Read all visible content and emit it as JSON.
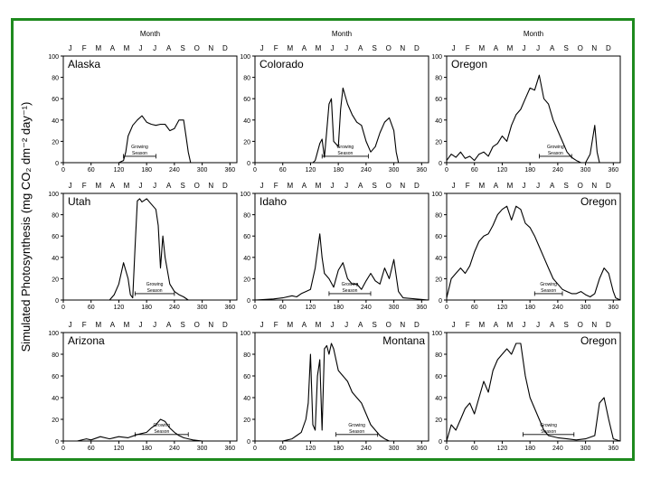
{
  "y_axis_label": "Simulated Photosynthesis (mg CO₂ dm⁻² day⁻¹)",
  "month_axis_title": "Month",
  "growing_season_label": [
    "Growing",
    "Season"
  ],
  "colors": {
    "frame": "#1e8a1e",
    "line": "#000000"
  },
  "chart_data": [
    {
      "type": "line",
      "title": "Alaska",
      "ylim": [
        0,
        100
      ],
      "xlim": [
        0,
        375
      ],
      "xticks": [
        0,
        60,
        120,
        180,
        240,
        300,
        360
      ],
      "yticks": [
        0,
        20,
        40,
        60,
        80,
        100
      ],
      "months": [
        "J",
        "F",
        "M",
        "A",
        "M",
        "J",
        "J",
        "A",
        "S",
        "O",
        "N",
        "D"
      ],
      "show_month_title": true,
      "title_align": "left",
      "growing_season": [
        130,
        200
      ],
      "series": [
        {
          "x": [
            0,
            120,
            130,
            135,
            140,
            150,
            160,
            170,
            180,
            190,
            200,
            210,
            220,
            230,
            240,
            250,
            260,
            265,
            270,
            275,
            375
          ],
          "y": [
            0,
            0,
            2,
            10,
            25,
            35,
            40,
            44,
            38,
            36,
            35,
            36,
            36,
            30,
            32,
            40,
            40,
            25,
            10,
            0,
            0
          ]
        }
      ]
    },
    {
      "type": "line",
      "title": "Colorado",
      "ylim": [
        0,
        100
      ],
      "xlim": [
        0,
        375
      ],
      "xticks": [
        0,
        60,
        120,
        180,
        240,
        300,
        360
      ],
      "yticks": [
        0,
        20,
        40,
        60,
        80,
        100
      ],
      "months": [
        "J",
        "F",
        "M",
        "A",
        "M",
        "J",
        "J",
        "A",
        "S",
        "O",
        "N",
        "D"
      ],
      "show_month_title": true,
      "title_align": "left",
      "growing_season": [
        145,
        245
      ],
      "series": [
        {
          "x": [
            0,
            125,
            130,
            140,
            145,
            150,
            155,
            160,
            165,
            170,
            180,
            185,
            190,
            200,
            210,
            220,
            230,
            240,
            250,
            260,
            270,
            280,
            290,
            300,
            305,
            310,
            375
          ],
          "y": [
            0,
            0,
            2,
            18,
            22,
            5,
            30,
            55,
            60,
            20,
            15,
            50,
            70,
            55,
            45,
            38,
            35,
            20,
            10,
            15,
            28,
            38,
            42,
            30,
            10,
            0,
            0
          ]
        }
      ]
    },
    {
      "type": "line",
      "title": "Oregon",
      "ylim": [
        0,
        100
      ],
      "xlim": [
        0,
        375
      ],
      "xticks": [
        0,
        60,
        120,
        180,
        240,
        300,
        360
      ],
      "yticks": [
        0,
        20,
        40,
        60,
        80,
        100
      ],
      "months": [
        "J",
        "F",
        "M",
        "A",
        "M",
        "J",
        "J",
        "A",
        "S",
        "O",
        "N",
        "D"
      ],
      "show_month_title": true,
      "title_align": "left",
      "growing_season": [
        200,
        270
      ],
      "series": [
        {
          "x": [
            0,
            10,
            20,
            30,
            40,
            50,
            60,
            70,
            80,
            90,
            100,
            110,
            120,
            130,
            140,
            150,
            160,
            170,
            180,
            190,
            200,
            210,
            220,
            230,
            240,
            250,
            260,
            270,
            280,
            290,
            300,
            310,
            320,
            325,
            330,
            340,
            375
          ],
          "y": [
            2,
            8,
            5,
            10,
            4,
            6,
            2,
            8,
            10,
            6,
            15,
            18,
            25,
            20,
            35,
            45,
            50,
            60,
            70,
            68,
            82,
            60,
            55,
            40,
            30,
            20,
            10,
            5,
            2,
            0,
            0,
            8,
            35,
            10,
            0,
            0,
            0
          ]
        }
      ]
    },
    {
      "type": "line",
      "title": "Utah",
      "ylim": [
        0,
        100
      ],
      "xlim": [
        0,
        375
      ],
      "xticks": [
        0,
        60,
        120,
        180,
        240,
        300,
        360
      ],
      "yticks": [
        0,
        20,
        40,
        60,
        80,
        100
      ],
      "months": [
        "J",
        "F",
        "M",
        "A",
        "M",
        "J",
        "J",
        "A",
        "S",
        "O",
        "N",
        "D"
      ],
      "show_month_title": false,
      "title_align": "left",
      "growing_season": [
        155,
        240
      ],
      "series": [
        {
          "x": [
            0,
            100,
            110,
            120,
            130,
            140,
            145,
            150,
            155,
            160,
            165,
            170,
            180,
            190,
            200,
            205,
            210,
            215,
            220,
            230,
            240,
            250,
            260,
            270,
            375
          ],
          "y": [
            0,
            0,
            5,
            15,
            35,
            20,
            5,
            2,
            50,
            93,
            95,
            92,
            95,
            90,
            85,
            70,
            30,
            60,
            40,
            15,
            8,
            5,
            3,
            0,
            0
          ]
        }
      ]
    },
    {
      "type": "line",
      "title": "Idaho",
      "ylim": [
        0,
        100
      ],
      "xlim": [
        0,
        375
      ],
      "xticks": [
        0,
        60,
        120,
        180,
        240,
        300,
        360
      ],
      "yticks": [
        0,
        20,
        40,
        60,
        80,
        100
      ],
      "months": [
        "J",
        "F",
        "M",
        "A",
        "M",
        "J",
        "J",
        "A",
        "S",
        "O",
        "N",
        "D"
      ],
      "show_month_title": false,
      "title_align": "left",
      "growing_season": [
        160,
        250
      ],
      "series": [
        {
          "x": [
            0,
            40,
            60,
            80,
            90,
            100,
            110,
            120,
            130,
            140,
            145,
            150,
            160,
            170,
            180,
            190,
            200,
            210,
            220,
            230,
            240,
            250,
            260,
            270,
            280,
            290,
            300,
            310,
            320,
            375
          ],
          "y": [
            0,
            1,
            2,
            4,
            3,
            6,
            8,
            10,
            30,
            62,
            40,
            25,
            20,
            12,
            28,
            35,
            20,
            15,
            15,
            10,
            18,
            25,
            18,
            15,
            30,
            20,
            38,
            8,
            2,
            0
          ]
        }
      ]
    },
    {
      "type": "line",
      "title": "Oregon",
      "ylim": [
        0,
        100
      ],
      "xlim": [
        0,
        375
      ],
      "xticks": [
        0,
        60,
        120,
        180,
        240,
        300,
        360
      ],
      "yticks": [
        0,
        20,
        40,
        60,
        80,
        100
      ],
      "months": [
        "J",
        "F",
        "M",
        "A",
        "M",
        "J",
        "J",
        "A",
        "S",
        "O",
        "N",
        "D"
      ],
      "show_month_title": false,
      "title_align": "right",
      "growing_season": [
        190,
        250
      ],
      "series": [
        {
          "x": [
            0,
            10,
            20,
            30,
            40,
            50,
            60,
            70,
            80,
            90,
            100,
            110,
            120,
            130,
            140,
            150,
            160,
            170,
            180,
            190,
            200,
            210,
            220,
            230,
            240,
            250,
            260,
            270,
            280,
            290,
            300,
            310,
            320,
            330,
            340,
            350,
            360,
            365,
            375
          ],
          "y": [
            2,
            20,
            25,
            30,
            25,
            32,
            45,
            55,
            60,
            62,
            70,
            80,
            85,
            88,
            75,
            88,
            85,
            72,
            68,
            60,
            50,
            40,
            30,
            20,
            15,
            10,
            8,
            6,
            6,
            8,
            5,
            3,
            6,
            20,
            30,
            25,
            8,
            2,
            0
          ]
        }
      ]
    },
    {
      "type": "line",
      "title": "Arizona",
      "ylim": [
        0,
        100
      ],
      "xlim": [
        0,
        375
      ],
      "xticks": [
        0,
        60,
        120,
        180,
        240,
        300,
        360
      ],
      "yticks": [
        0,
        20,
        40,
        60,
        80,
        100
      ],
      "months": [
        "J",
        "F",
        "M",
        "A",
        "M",
        "J",
        "J",
        "A",
        "S",
        "O",
        "N",
        "D"
      ],
      "show_month_title": false,
      "title_align": "left",
      "growing_season": [
        155,
        270
      ],
      "series": [
        {
          "x": [
            0,
            30,
            50,
            60,
            80,
            100,
            120,
            140,
            160,
            180,
            190,
            200,
            210,
            220,
            230,
            240,
            250,
            260,
            270,
            280,
            300,
            320,
            340,
            375
          ],
          "y": [
            0,
            0,
            2,
            1,
            4,
            2,
            4,
            3,
            6,
            8,
            12,
            15,
            20,
            18,
            12,
            8,
            5,
            3,
            2,
            1,
            0,
            0,
            0,
            0
          ]
        }
      ]
    },
    {
      "type": "line",
      "title": "Montana",
      "ylim": [
        0,
        100
      ],
      "xlim": [
        0,
        375
      ],
      "xticks": [
        0,
        60,
        120,
        180,
        240,
        300,
        360
      ],
      "yticks": [
        0,
        20,
        40,
        60,
        80,
        100
      ],
      "months": [
        "J",
        "F",
        "M",
        "A",
        "M",
        "J",
        "J",
        "A",
        "S",
        "O",
        "N",
        "D"
      ],
      "show_month_title": false,
      "title_align": "right",
      "growing_season": [
        175,
        265
      ],
      "series": [
        {
          "x": [
            0,
            60,
            80,
            90,
            100,
            110,
            115,
            120,
            125,
            130,
            135,
            140,
            145,
            150,
            155,
            160,
            165,
            170,
            180,
            190,
            200,
            210,
            220,
            230,
            240,
            250,
            260,
            270,
            280,
            290,
            300,
            375
          ],
          "y": [
            0,
            0,
            2,
            5,
            8,
            20,
            35,
            80,
            15,
            10,
            60,
            75,
            10,
            85,
            88,
            80,
            90,
            85,
            65,
            60,
            55,
            45,
            40,
            35,
            25,
            15,
            10,
            5,
            2,
            0,
            0,
            0
          ]
        }
      ]
    },
    {
      "type": "line",
      "title": "Oregon",
      "ylim": [
        0,
        100
      ],
      "xlim": [
        0,
        375
      ],
      "xticks": [
        0,
        60,
        120,
        180,
        240,
        300,
        360
      ],
      "yticks": [
        0,
        20,
        40,
        60,
        80,
        100
      ],
      "months": [
        "J",
        "F",
        "M",
        "A",
        "M",
        "J",
        "J",
        "A",
        "S",
        "O",
        "N",
        "D"
      ],
      "show_month_title": false,
      "title_align": "right",
      "growing_season": [
        165,
        275
      ],
      "series": [
        {
          "x": [
            0,
            10,
            20,
            30,
            40,
            50,
            60,
            70,
            80,
            90,
            100,
            110,
            120,
            130,
            140,
            150,
            160,
            170,
            180,
            190,
            200,
            210,
            220,
            240,
            260,
            280,
            300,
            320,
            330,
            340,
            350,
            360,
            375
          ],
          "y": [
            0,
            15,
            10,
            20,
            30,
            35,
            25,
            40,
            55,
            45,
            65,
            75,
            80,
            85,
            80,
            90,
            90,
            60,
            40,
            30,
            20,
            10,
            5,
            3,
            2,
            1,
            2,
            5,
            35,
            40,
            20,
            2,
            0
          ]
        }
      ]
    }
  ]
}
